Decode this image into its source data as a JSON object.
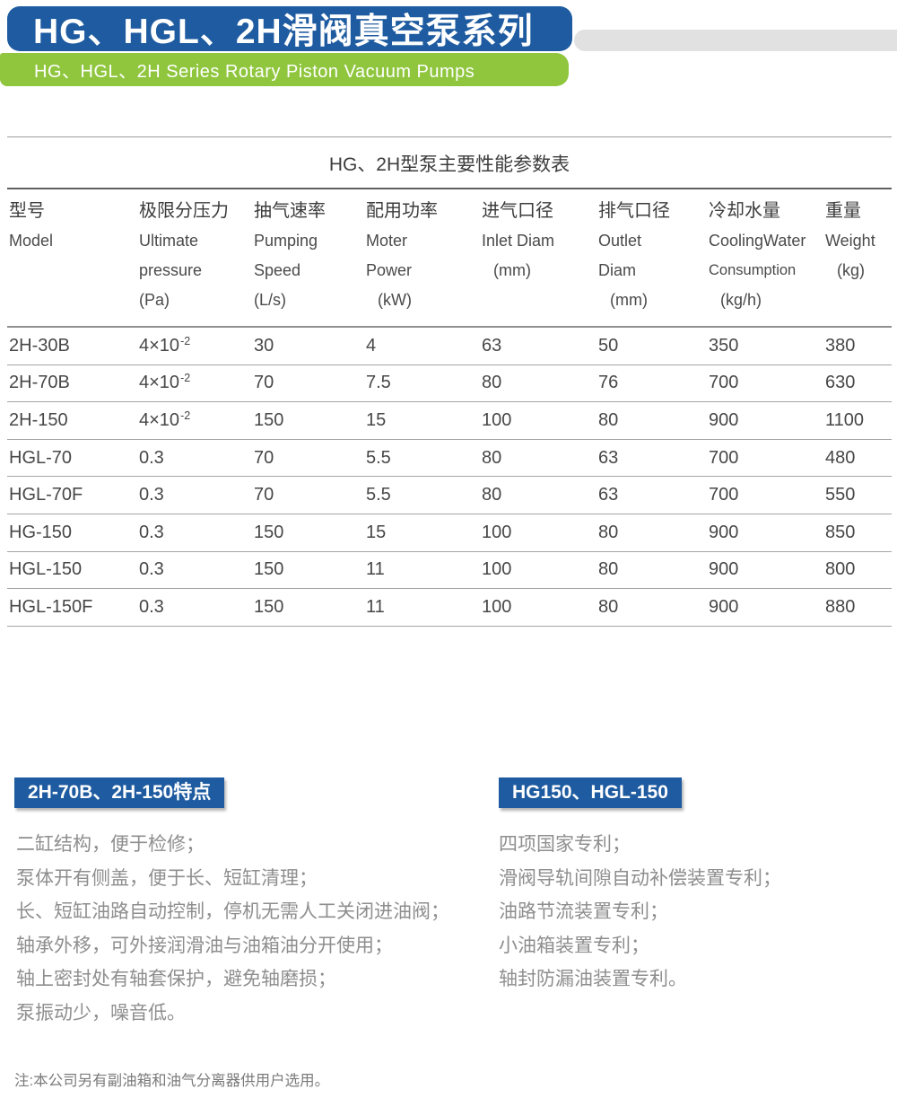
{
  "colors": {
    "header_blue": "#1e5ba0",
    "header_green": "#8fc63e",
    "gray_bar": "#e1e1e1",
    "badge_blue": "#1e5ba0",
    "table_line": "#a5a5a5",
    "text_dark": "#3c3c3c",
    "text_gray": "#8e8e8e"
  },
  "header": {
    "title": "HG、HGL、2H滑阀真空泵系列",
    "subtitle": "HG、HGL、2H Series Rotary Piston Vacuum Pumps"
  },
  "table": {
    "title": "HG、2H型泵主要性能参数表",
    "columns": [
      {
        "cn": "型号",
        "en1": "Model",
        "en2": "",
        "unit": ""
      },
      {
        "cn": "极限分压力",
        "en1": "Ultimate",
        "en2": "pressure",
        "unit": "(Pa)"
      },
      {
        "cn": "抽气速率",
        "en1": "Pumping",
        "en2": "Speed",
        "unit": "(L/s)"
      },
      {
        "cn": "配用功率",
        "en1": "Moter",
        "en2": "Power",
        "unit": "(kW)"
      },
      {
        "cn": "进气口径",
        "en1": "Inlet Diam",
        "en2": "",
        "unit": "(mm)"
      },
      {
        "cn": "排气口径",
        "en1": "Outlet",
        "en2": "Diam",
        "unit": "(mm)"
      },
      {
        "cn": "冷却水量",
        "en1": "CoolingWater",
        "en2": "Consumption",
        "unit": "(kg/h)"
      },
      {
        "cn": "重量",
        "en1": "Weight",
        "en2": "",
        "unit": "(kg)"
      }
    ],
    "rows": [
      {
        "model": "2H-30B",
        "p_base": "4×10",
        "p_sup": "-2",
        "speed": "30",
        "power": "4",
        "inlet": "63",
        "outlet": "50",
        "water": "350",
        "weight": "380"
      },
      {
        "model": "2H-70B",
        "p_base": "4×10",
        "p_sup": "-2",
        "speed": "70",
        "power": "7.5",
        "inlet": "80",
        "outlet": "76",
        "water": "700",
        "weight": "630"
      },
      {
        "model": "2H-150",
        "p_base": "4×10",
        "p_sup": "-2",
        "speed": "150",
        "power": "15",
        "inlet": "100",
        "outlet": "80",
        "water": "900",
        "weight": "1100"
      },
      {
        "model": "HGL-70",
        "p_base": "0.3",
        "p_sup": "",
        "speed": "70",
        "power": "5.5",
        "inlet": "80",
        "outlet": "63",
        "water": "700",
        "weight": "480"
      },
      {
        "model": "HGL-70F",
        "p_base": "0.3",
        "p_sup": "",
        "speed": "70",
        "power": "5.5",
        "inlet": "80",
        "outlet": "63",
        "water": "700",
        "weight": "550"
      },
      {
        "model": "HG-150",
        "p_base": "0.3",
        "p_sup": "",
        "speed": "150",
        "power": "15",
        "inlet": "100",
        "outlet": "80",
        "water": "900",
        "weight": "850"
      },
      {
        "model": "HGL-150",
        "p_base": "0.3",
        "p_sup": "",
        "speed": "150",
        "power": "11",
        "inlet": "100",
        "outlet": "80",
        "water": "900",
        "weight": "800"
      },
      {
        "model": "HGL-150F",
        "p_base": "0.3",
        "p_sup": "",
        "speed": "150",
        "power": "11",
        "inlet": "100",
        "outlet": "80",
        "water": "900",
        "weight": "880"
      }
    ]
  },
  "sections": {
    "left": {
      "badge": "2H-70B、2H-150特点",
      "items": [
        "二缸结构，便于检修；",
        "泵体开有侧盖，便于长、短缸清理；",
        "长、短缸油路自动控制，停机无需人工关闭进油阀；",
        "轴承外移，可外接润滑油与油箱油分开使用；",
        "轴上密封处有轴套保护，避免轴磨损；",
        "泵振动少，噪音低。"
      ]
    },
    "right": {
      "badge": "HG150、HGL-150",
      "items": [
        "四项国家专利；",
        "滑阀导轨间隙自动补偿装置专利；",
        "油路节流装置专利；",
        "小油箱装置专利；",
        "轴封防漏油装置专利。"
      ]
    }
  },
  "note": "注:本公司另有副油箱和油气分离器供用户选用。"
}
